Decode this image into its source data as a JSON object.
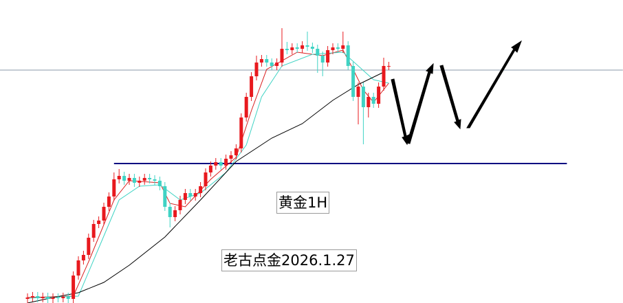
{
  "chart_data": {
    "type": "candlestick",
    "open": [
      6,
      8,
      10,
      7,
      9,
      6,
      8,
      7,
      9,
      6,
      40,
      62,
      70,
      95,
      115,
      120,
      140,
      155,
      180,
      185,
      178,
      182,
      175,
      178,
      182,
      180,
      178,
      170,
      140,
      125,
      135,
      150,
      160,
      155,
      160,
      170,
      190,
      200,
      205,
      200,
      210,
      215,
      225,
      270,
      300,
      330,
      350,
      355,
      350,
      345,
      350,
      370,
      368,
      372,
      370,
      375,
      373,
      370,
      360,
      350,
      368,
      372,
      370,
      375,
      345,
      300,
      315,
      285,
      300,
      290,
      315,
      345
    ],
    "high": [
      14,
      16,
      16,
      15,
      15,
      14,
      14,
      15,
      15,
      46,
      68,
      76,
      101,
      121,
      126,
      146,
      161,
      190,
      195,
      191,
      188,
      188,
      184,
      188,
      188,
      186,
      184,
      176,
      146,
      141,
      156,
      166,
      166,
      166,
      176,
      196,
      206,
      211,
      211,
      216,
      221,
      231,
      276,
      306,
      336,
      360,
      361,
      361,
      356,
      356,
      400,
      380,
      378,
      378,
      381,
      395,
      379,
      376,
      366,
      374,
      378,
      378,
      395,
      381,
      351,
      321,
      321,
      306,
      306,
      321,
      357,
      351
    ],
    "low": [
      0,
      2,
      1,
      1,
      0,
      0,
      1,
      1,
      0,
      0,
      34,
      56,
      64,
      89,
      109,
      114,
      134,
      149,
      174,
      172,
      172,
      169,
      169,
      172,
      174,
      172,
      164,
      134,
      110,
      119,
      129,
      144,
      149,
      149,
      154,
      164,
      184,
      194,
      194,
      194,
      204,
      209,
      219,
      264,
      294,
      324,
      344,
      344,
      339,
      339,
      344,
      362,
      362,
      364,
      364,
      367,
      364,
      335,
      330,
      344,
      362,
      364,
      364,
      339,
      294,
      260,
      231,
      270,
      284,
      284,
      309,
      339
    ],
    "close": [
      8,
      10,
      7,
      9,
      6,
      8,
      7,
      9,
      6,
      40,
      62,
      70,
      95,
      115,
      120,
      140,
      155,
      180,
      185,
      178,
      182,
      175,
      178,
      182,
      180,
      178,
      170,
      140,
      125,
      135,
      150,
      160,
      155,
      160,
      170,
      190,
      200,
      205,
      200,
      210,
      215,
      225,
      270,
      300,
      330,
      350,
      355,
      350,
      345,
      350,
      370,
      368,
      372,
      370,
      375,
      373,
      370,
      360,
      350,
      368,
      372,
      370,
      375,
      345,
      300,
      315,
      285,
      300,
      290,
      315,
      345,
      345
    ],
    "up_color": "#e8191e",
    "down_color": "#3fd3c4",
    "ylim": [
      0,
      441
    ],
    "lines": [
      {
        "color": "#d81e1e",
        "x": [
          0,
          9,
          12,
          17,
          20,
          26,
          28,
          31,
          36,
          41,
          44,
          47,
          53,
          58,
          62,
          64,
          66,
          68,
          71
        ],
        "values": [
          8,
          10,
          60,
          150,
          178,
          175,
          145,
          140,
          180,
          212,
          280,
          340,
          365,
          360,
          368,
          340,
          310,
          292,
          320
        ]
      },
      {
        "color": "#3fd3c4",
        "x": [
          0,
          10,
          14,
          18,
          22,
          26,
          30,
          34,
          39,
          43,
          46,
          50,
          56,
          62,
          65,
          68,
          71
        ],
        "values": [
          7,
          10,
          80,
          150,
          170,
          172,
          150,
          160,
          190,
          230,
          300,
          345,
          362,
          365,
          345,
          325,
          320
        ]
      },
      {
        "color": "#000000",
        "x": [
          0,
          5,
          10,
          15,
          20,
          27,
          34,
          41,
          48,
          54,
          60,
          65,
          70
        ],
        "values": [
          0,
          8,
          15,
          30,
          55,
          96,
          150,
          206,
          240,
          261,
          295,
          318,
          336
        ]
      }
    ],
    "reference_lines": [
      {
        "value": 339,
        "color": "#8a9aa8",
        "x": [
          -6,
          117
        ]
      },
      {
        "value": 203,
        "color": "#000080",
        "x": [
          17,
          106
        ]
      }
    ],
    "annotations": [
      "黄金1H",
      "老古点金2026.1.27"
    ]
  }
}
